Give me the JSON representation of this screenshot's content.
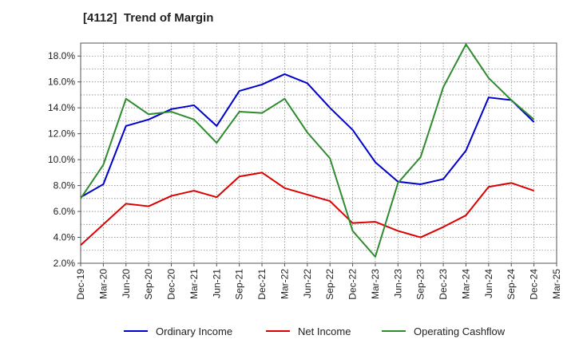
{
  "chart_data": {
    "type": "line",
    "title": "[4112]  Trend of Margin",
    "xlabel": "",
    "ylabel": "",
    "x": [
      "Dec-19",
      "Mar-20",
      "Jun-20",
      "Sep-20",
      "Dec-20",
      "Mar-21",
      "Jun-21",
      "Sep-21",
      "Dec-21",
      "Mar-22",
      "Jun-22",
      "Sep-22",
      "Dec-22",
      "Mar-23",
      "Jun-23",
      "Sep-23",
      "Dec-23",
      "Mar-24",
      "Jun-24",
      "Sep-24",
      "Dec-24",
      "Mar-25"
    ],
    "ylim": [
      2.0,
      19.0
    ],
    "yticks": [
      2.0,
      4.0,
      6.0,
      8.0,
      10.0,
      12.0,
      14.0,
      16.0,
      18.0
    ],
    "ytick_labels": [
      "2.0%",
      "4.0%",
      "6.0%",
      "8.0%",
      "10.0%",
      "12.0%",
      "14.0%",
      "16.0%",
      "18.0%"
    ],
    "grid": true,
    "legend_position": "bottom",
    "series": [
      {
        "name": "Ordinary Income",
        "color": "#0000cc",
        "values": [
          7.1,
          8.1,
          12.6,
          13.1,
          13.9,
          14.2,
          12.6,
          15.3,
          15.8,
          16.6,
          15.9,
          14.0,
          12.3,
          9.8,
          8.3,
          8.1,
          8.5,
          10.7,
          14.8,
          14.6,
          12.9,
          null
        ]
      },
      {
        "name": "Net Income",
        "color": "#dd0000",
        "values": [
          3.4,
          5.0,
          6.6,
          6.4,
          7.2,
          7.6,
          7.1,
          8.7,
          9.0,
          7.8,
          7.3,
          6.8,
          5.1,
          5.2,
          4.5,
          4.0,
          4.8,
          5.7,
          7.9,
          8.2,
          7.6,
          null
        ]
      },
      {
        "name": "Operating Cashflow",
        "color": "#2e8b2e",
        "values": [
          7.0,
          9.6,
          14.7,
          13.5,
          13.7,
          13.1,
          11.3,
          13.7,
          13.6,
          14.7,
          12.1,
          10.1,
          4.5,
          2.5,
          8.2,
          10.2,
          15.6,
          18.9,
          16.3,
          14.6,
          13.1,
          null
        ]
      }
    ]
  }
}
